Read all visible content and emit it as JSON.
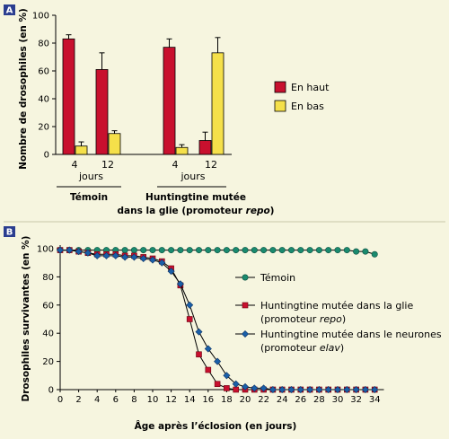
{
  "chart_data": [
    {
      "panel": "A",
      "type": "bar",
      "ylabel": "Nombre de drosophiles (en %)",
      "ylim": [
        0,
        100
      ],
      "yticks": [
        "0",
        "20",
        "40",
        "60",
        "80",
        "100"
      ],
      "groups": [
        {
          "name": "Témoin",
          "bars": [
            {
              "label": "4",
              "en_haut": 83,
              "en_haut_err": 3,
              "en_bas": 6,
              "en_bas_err": 3
            },
            {
              "label": "12",
              "en_haut": 61,
              "en_haut_err": 12,
              "en_bas": 15,
              "en_bas_err": 2
            }
          ]
        },
        {
          "name_line1": "Huntingtine mutée",
          "name_line2": "dans la glie (promoteur ",
          "name_italic": "repo",
          "name_close": ")",
          "bars": [
            {
              "label": "4",
              "en_haut": 77,
              "en_haut_err": 6,
              "en_bas": 5,
              "en_bas_err": 2
            },
            {
              "label": "12",
              "en_haut": 10,
              "en_haut_err": 6,
              "en_bas": 73,
              "en_bas_err": 11
            }
          ]
        }
      ],
      "unit_label": "jours",
      "legend": [
        {
          "name": "En haut",
          "color": "#c8102e"
        },
        {
          "name": "En bas",
          "color": "#f5e04a"
        }
      ]
    },
    {
      "panel": "B",
      "type": "line",
      "ylabel": "Drosophiles survivantes (en %)",
      "xlabel": "Âge après l’éclosion (en jours)",
      "xlim": [
        0,
        35
      ],
      "ylim": [
        0,
        100
      ],
      "xticks": [
        0,
        2,
        4,
        6,
        8,
        10,
        12,
        14,
        16,
        18,
        20,
        22,
        24,
        26,
        28,
        30,
        32,
        34
      ],
      "yticks": [
        0,
        20,
        40,
        60,
        80,
        100
      ],
      "series": [
        {
          "name": "Témoin",
          "marker": "circle",
          "color": "#1a8a6e",
          "x": [
            0,
            1,
            2,
            3,
            4,
            5,
            6,
            7,
            8,
            9,
            10,
            11,
            12,
            13,
            14,
            15,
            16,
            17,
            18,
            19,
            20,
            21,
            22,
            23,
            24,
            25,
            26,
            27,
            28,
            29,
            30,
            31,
            32,
            33,
            34
          ],
          "y": [
            99,
            99,
            99,
            99,
            99,
            99,
            99,
            99,
            99,
            99,
            99,
            99,
            99,
            99,
            99,
            99,
            99,
            99,
            99,
            99,
            99,
            99,
            99,
            99,
            99,
            99,
            99,
            99,
            99,
            99,
            99,
            99,
            98,
            98,
            96
          ]
        },
        {
          "name_text": "Huntingtine mutée dans la glie",
          "name_line2": "(promoteur ",
          "name_italic": "repo",
          "name_close": ")",
          "marker": "square",
          "color": "#c8102e",
          "x": [
            0,
            1,
            2,
            3,
            4,
            5,
            6,
            7,
            8,
            9,
            10,
            11,
            12,
            13,
            14,
            15,
            16,
            17,
            18,
            19,
            20,
            21,
            22,
            23,
            24,
            25,
            26,
            27,
            28,
            29,
            30,
            31,
            32,
            33,
            34
          ],
          "y": [
            99,
            99,
            98,
            97,
            96,
            96,
            96,
            95,
            95,
            94,
            93,
            91,
            86,
            74,
            50,
            25,
            14,
            4,
            1,
            0,
            0,
            0,
            0,
            0,
            0,
            0,
            0,
            0,
            0,
            0,
            0,
            0,
            0,
            0,
            0
          ]
        },
        {
          "name_text": "Huntingtine mutée dans le neurones",
          "name_line2": "(promoteur ",
          "name_italic": "elav",
          "name_close": ")",
          "marker": "diamond",
          "color": "#1a5fa8",
          "x": [
            0,
            1,
            2,
            3,
            4,
            5,
            6,
            7,
            8,
            9,
            10,
            11,
            12,
            13,
            14,
            15,
            16,
            17,
            18,
            19,
            20,
            21,
            22,
            23,
            24,
            25,
            26,
            27,
            28,
            29,
            30,
            31,
            32,
            33,
            34
          ],
          "y": [
            99,
            99,
            98,
            97,
            95,
            95,
            95,
            94,
            94,
            93,
            92,
            90,
            84,
            75,
            60,
            41,
            29,
            20,
            10,
            4,
            2,
            1,
            1,
            0,
            0,
            0,
            0,
            0,
            0,
            0,
            0,
            0,
            0,
            0,
            0
          ]
        }
      ]
    }
  ]
}
